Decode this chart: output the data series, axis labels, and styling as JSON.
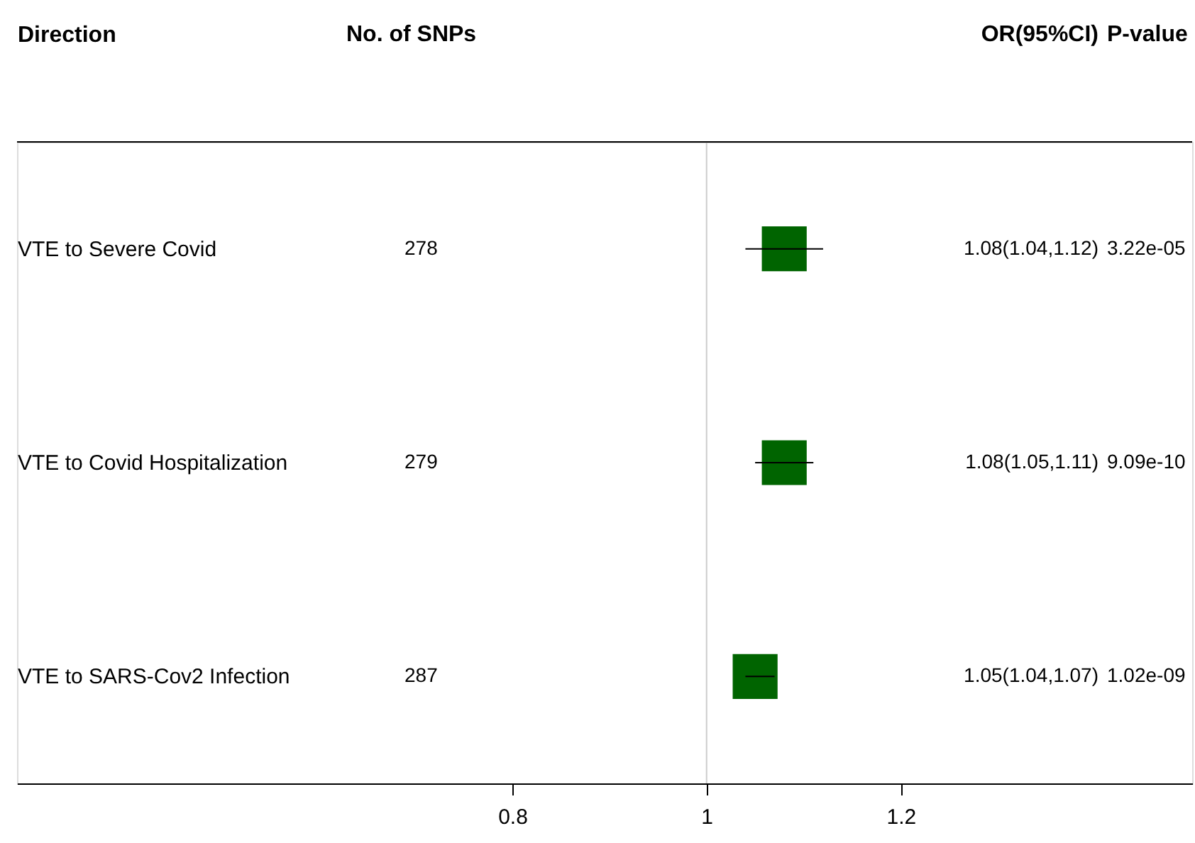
{
  "chart_data": {
    "type": "scatter",
    "orientation": "horizontal",
    "ylabel": "Direction",
    "categories": [
      "VTE to Severe Covid",
      "VTE to Covid Hospitalization",
      "VTE to SARS-Cov2 Infection"
    ],
    "values": [
      1.08,
      1.08,
      1.05
    ],
    "errors": [
      [
        1.04,
        1.12
      ],
      [
        1.05,
        1.11
      ],
      [
        1.04,
        1.07
      ]
    ],
    "color": "#006400",
    "marker": "square",
    "xlim": [
      0.29,
      1.5
    ],
    "xticks": [
      0.8,
      1,
      1.2
    ],
    "grid": false,
    "ref_lines": [
      {
        "axis": "x",
        "value": 1,
        "color": "#cccccc"
      }
    ],
    "annotations": [
      "No. of SNPs",
      "OR(95%CI)",
      "P-value",
      "278",
      "1.08(1.04,1.12)",
      "3.22e-05",
      "279",
      "1.08(1.05,1.11)",
      "9.09e-10",
      "287",
      "1.05(1.04,1.07)",
      "1.02e-09"
    ]
  }
}
